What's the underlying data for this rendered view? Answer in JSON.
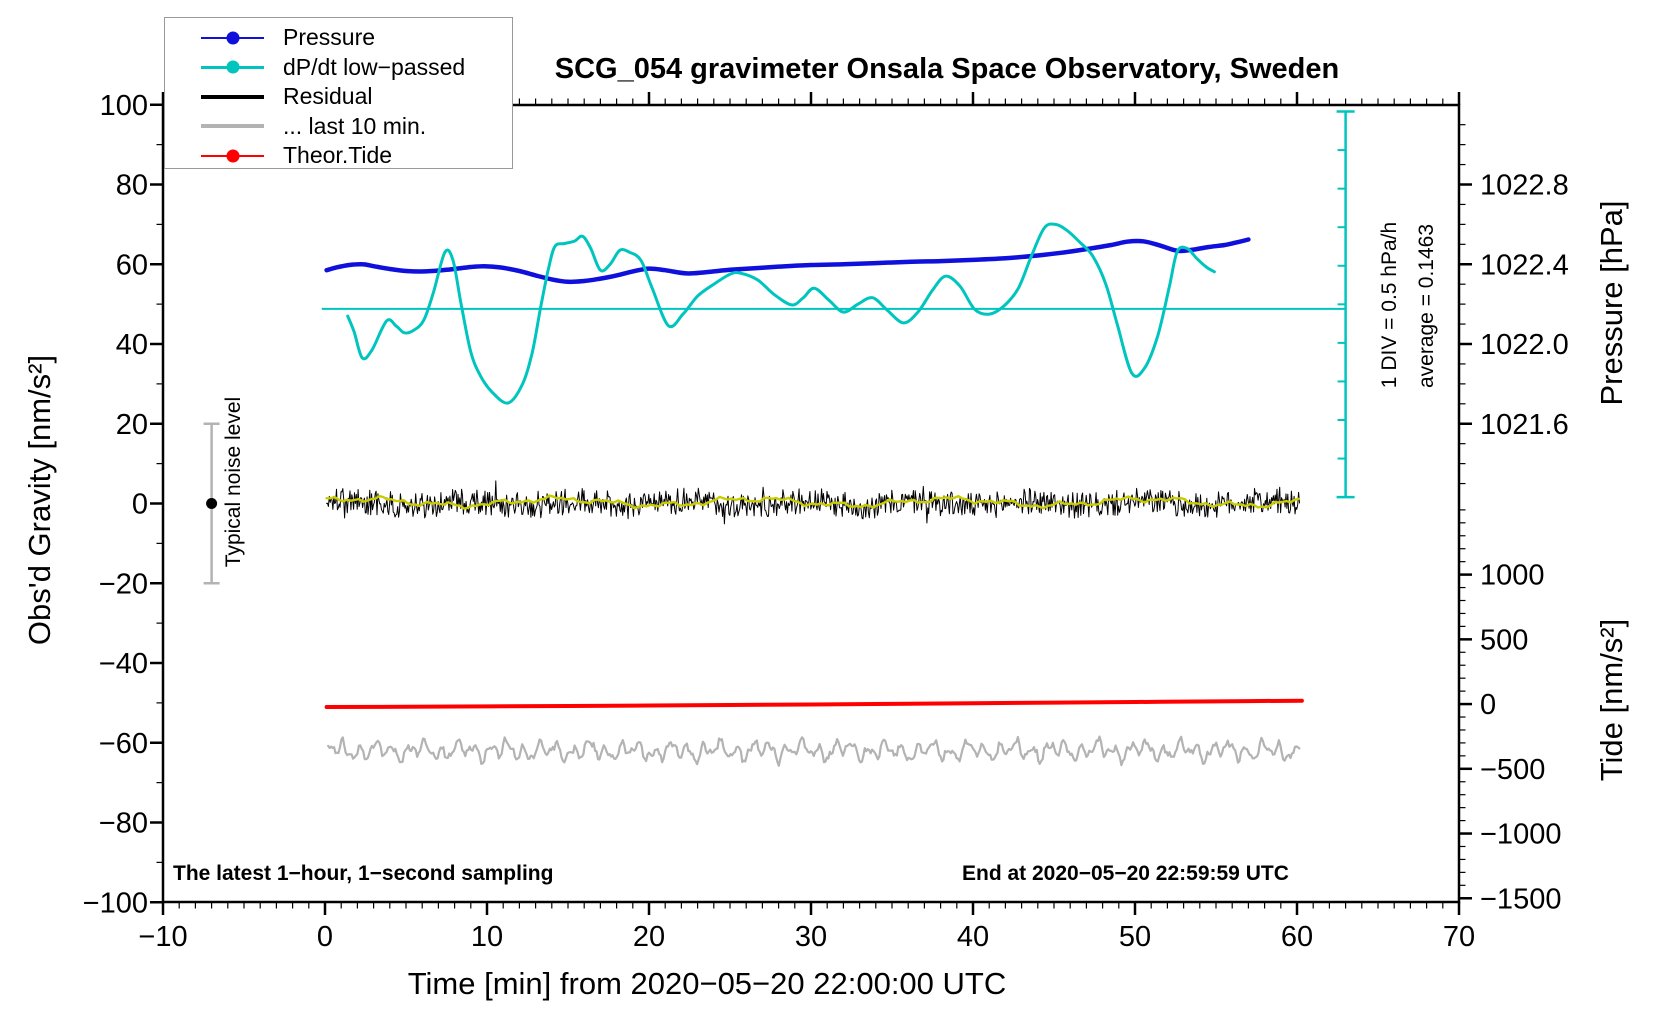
{
  "title": "SCG_054 gravimeter Onsala Space Observatory, Sweden",
  "notes": {
    "sampling": "The latest 1−hour, 1−second sampling",
    "end": "End at 2020−05−20 22:59:59 UTC"
  },
  "annotations": {
    "noise": "Typical noise level",
    "div": "1 DIV = 0.5 hPa/h",
    "average": "average = 0.1463"
  },
  "axis_titles": {
    "left": "Obs'd Gravity [nm/s²]",
    "bottom": "Time [min] from 2020−05−20 22:00:00 UTC",
    "pressure": "Pressure [hPa]",
    "tide": "Tide [nm/s²]"
  },
  "legend": {
    "items": [
      {
        "label": "Pressure",
        "color": "#1010dd",
        "thickness": 2.5,
        "marker": true
      },
      {
        "label": "dP/dt low−passed",
        "color": "#00c5bf",
        "thickness": 2.5,
        "marker": true
      },
      {
        "label": "Residual",
        "color": "#000000",
        "thickness": 4,
        "marker": false
      },
      {
        "label": "... last 10 min.",
        "color": "#b3b3b3",
        "thickness": 4,
        "marker": false
      },
      {
        "label": "Theor.Tide",
        "color": "#ff0000",
        "thickness": 2.5,
        "marker": true
      }
    ]
  },
  "chart_data": {
    "type": "line",
    "x_axis": {
      "min": -10,
      "max": 70,
      "major_step": 10,
      "minor_step": 1,
      "tick_labels": [
        "−10",
        "0",
        "10",
        "20",
        "30",
        "40",
        "50",
        "60",
        "70"
      ]
    },
    "left_axis": {
      "min": -100,
      "max": 100,
      "major_step": 20,
      "minor_step": 10,
      "tick_labels": [
        "100",
        "80",
        "60",
        "40",
        "20",
        "0",
        "−20",
        "−40",
        "−60",
        "−80",
        "−100"
      ]
    },
    "pressure_axis": {
      "anchor_hpa_at_gravity0": 1021.2,
      "hpa_per_gravity_unit": 0.02,
      "tick_values": [
        1022.8,
        1022.4,
        1022.0,
        1021.6
      ],
      "tick_labels": [
        "1022.8",
        "1022.4",
        "1022.0",
        "1021.6"
      ],
      "minor_step": 0.1
    },
    "tide_axis": {
      "gravity_at_tide0": -50.3,
      "tide_per_gravity_unit": 30.8,
      "tick_values": [
        1000,
        500,
        0,
        -500,
        -1000,
        -1500
      ],
      "tick_labels": [
        "1000",
        "500",
        "0",
        "−500",
        "−1000",
        "−1500"
      ],
      "minor_step": 100
    },
    "average_line": {
      "gravity": 48.8,
      "t_start": -0.2,
      "t_end": 63
    },
    "scale_bar": {
      "t": 63,
      "gravity_top": 98.3,
      "gravity_bottom": 1.6,
      "divisions": 10,
      "value_per_div": "0.5 hPa/h",
      "average_hpa_per_h": 0.1463
    },
    "noise_marker": {
      "t": -7,
      "center_gravity": 0,
      "half_range_gravity": 20
    },
    "series": [
      {
        "name": "Pressure",
        "role": "pressure",
        "unit": "hPa",
        "color": "#1010dd",
        "width": 4.5,
        "points": [
          [
            0.1,
            1022.37
          ],
          [
            0.7,
            1022.384
          ],
          [
            1.5,
            1022.396
          ],
          [
            2.3,
            1022.4
          ],
          [
            3,
            1022.39
          ],
          [
            4,
            1022.376
          ],
          [
            5,
            1022.366
          ],
          [
            6.2,
            1022.364
          ],
          [
            7.5,
            1022.372
          ],
          [
            9,
            1022.386
          ],
          [
            9.8,
            1022.39
          ],
          [
            10.8,
            1022.384
          ],
          [
            12,
            1022.366
          ],
          [
            13,
            1022.344
          ],
          [
            14,
            1022.324
          ],
          [
            15,
            1022.312
          ],
          [
            16,
            1022.316
          ],
          [
            17,
            1022.328
          ],
          [
            18,
            1022.344
          ],
          [
            19,
            1022.364
          ],
          [
            20,
            1022.378
          ],
          [
            21,
            1022.37
          ],
          [
            22.3,
            1022.354
          ],
          [
            23.5,
            1022.36
          ],
          [
            25,
            1022.372
          ],
          [
            26.5,
            1022.38
          ],
          [
            28,
            1022.388
          ],
          [
            30,
            1022.396
          ],
          [
            32,
            1022.4
          ],
          [
            34,
            1022.406
          ],
          [
            36,
            1022.412
          ],
          [
            38,
            1022.416
          ],
          [
            40,
            1022.422
          ],
          [
            42,
            1022.43
          ],
          [
            44,
            1022.444
          ],
          [
            45.5,
            1022.458
          ],
          [
            47,
            1022.476
          ],
          [
            48.5,
            1022.496
          ],
          [
            49.5,
            1022.513
          ],
          [
            50.5,
            1022.515
          ],
          [
            51.5,
            1022.495
          ],
          [
            52.6,
            1022.468
          ],
          [
            53.5,
            1022.472
          ],
          [
            54.5,
            1022.486
          ],
          [
            55.5,
            1022.496
          ],
          [
            56.2,
            1022.508
          ],
          [
            57,
            1022.524
          ]
        ]
      },
      {
        "name": "dP/dt low-passed",
        "role": "dpdt",
        "unit": "nm/s2 (gravity scale)",
        "color": "#00c5bf",
        "width": 3,
        "points": [
          [
            1.4,
            47
          ],
          [
            1.8,
            43
          ],
          [
            2.3,
            36.5
          ],
          [
            2.9,
            38.5
          ],
          [
            3.8,
            45.8
          ],
          [
            4.4,
            44.5
          ],
          [
            4.9,
            42.8
          ],
          [
            5.5,
            43.5
          ],
          [
            6.1,
            46
          ],
          [
            6.7,
            53
          ],
          [
            7.4,
            63
          ],
          [
            7.9,
            61
          ],
          [
            8.4,
            50
          ],
          [
            9,
            38
          ],
          [
            9.6,
            32
          ],
          [
            10.3,
            28
          ],
          [
            11.3,
            25.2
          ],
          [
            12.2,
            30
          ],
          [
            12.8,
            38
          ],
          [
            13.3,
            49
          ],
          [
            13.8,
            59
          ],
          [
            14.2,
            64.5
          ],
          [
            14.8,
            65.2
          ],
          [
            15.4,
            65.8
          ],
          [
            15.9,
            67
          ],
          [
            16.4,
            64
          ],
          [
            17,
            58.5
          ],
          [
            17.6,
            60
          ],
          [
            18.2,
            63.5
          ],
          [
            18.8,
            63
          ],
          [
            19.5,
            61
          ],
          [
            20.2,
            54
          ],
          [
            21.2,
            44.6
          ],
          [
            22.1,
            47.5
          ],
          [
            23,
            52
          ],
          [
            24,
            55
          ],
          [
            25,
            57.5
          ],
          [
            25.6,
            57.8
          ],
          [
            26.7,
            56.1
          ],
          [
            27.7,
            52.5
          ],
          [
            28.8,
            49.8
          ],
          [
            29.5,
            51.5
          ],
          [
            30.2,
            54
          ],
          [
            31.1,
            51
          ],
          [
            32,
            48
          ],
          [
            32.9,
            50
          ],
          [
            33.8,
            51.6
          ],
          [
            34.7,
            48.5
          ],
          [
            35.7,
            45.3
          ],
          [
            36.6,
            48
          ],
          [
            37.5,
            53.5
          ],
          [
            38.3,
            57
          ],
          [
            39.2,
            54.5
          ],
          [
            40.1,
            48.7
          ],
          [
            41,
            47.5
          ],
          [
            41.9,
            49.5
          ],
          [
            42.8,
            54
          ],
          [
            43.6,
            62
          ],
          [
            44.4,
            69.1
          ],
          [
            45.1,
            70
          ],
          [
            45.8,
            68.5
          ],
          [
            46.6,
            65.5
          ],
          [
            47.4,
            62
          ],
          [
            48.2,
            55
          ],
          [
            48.9,
            45
          ],
          [
            49.8,
            32.7
          ],
          [
            50.6,
            34
          ],
          [
            51.4,
            42
          ],
          [
            52.1,
            54
          ],
          [
            52.6,
            63.1
          ],
          [
            53.2,
            64
          ],
          [
            53.8,
            61.5
          ],
          [
            54.4,
            59.3
          ],
          [
            54.9,
            58.1
          ]
        ]
      },
      {
        "name": "Residual",
        "role": "residual",
        "unit": "nm/s2",
        "color": "#000000",
        "width": 1,
        "generated": {
          "t_start": 0.1,
          "t_end": 60.2,
          "center": 0,
          "typical_amp": 3.3,
          "spike_factor": 1.9
        }
      },
      {
        "name": "Residual smoothed",
        "role": "residual_smooth",
        "color": "#c9cc00",
        "width": 2.4,
        "generated": {
          "t_start": 0.1,
          "t_end": 60.2,
          "center": 0.35,
          "amp": 1.3
        }
      },
      {
        "name": "... last 10 min.",
        "role": "last10",
        "color": "#b3b3b3",
        "width": 2.2,
        "generated": {
          "t_start": 0.2,
          "t_end": 60.2,
          "center": -62,
          "amp": 3
        }
      },
      {
        "name": "Theor.Tide",
        "role": "tide",
        "unit": "nm/s2",
        "color": "#ff0000",
        "width": 4,
        "points": [
          [
            0.1,
            -23
          ],
          [
            5,
            -21
          ],
          [
            10,
            -18
          ],
          [
            15,
            -15
          ],
          [
            20,
            -11
          ],
          [
            25,
            -7
          ],
          [
            30,
            -3
          ],
          [
            35,
            1
          ],
          [
            40,
            6
          ],
          [
            45,
            11
          ],
          [
            50,
            16
          ],
          [
            55,
            21
          ],
          [
            60.3,
            26
          ]
        ]
      }
    ]
  }
}
